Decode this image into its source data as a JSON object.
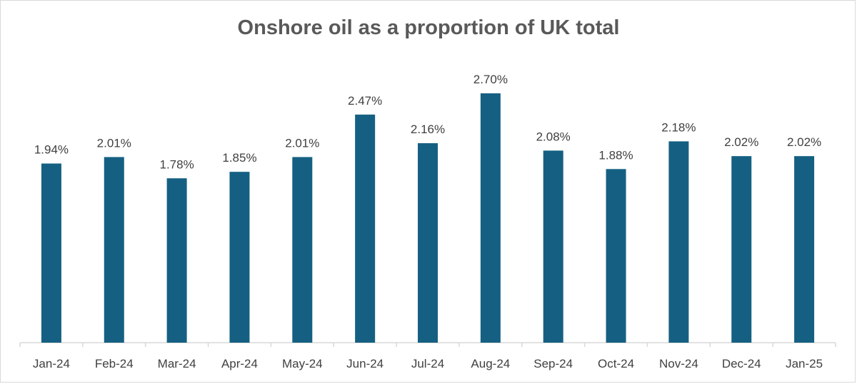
{
  "chart_data": {
    "type": "bar",
    "title": "Onshore oil as a proportion of UK total",
    "xlabel": "",
    "ylabel": "",
    "categories": [
      "Jan-24",
      "Feb-24",
      "Mar-24",
      "Apr-24",
      "May-24",
      "Jun-24",
      "Jul-24",
      "Aug-24",
      "Sep-24",
      "Oct-24",
      "Nov-24",
      "Dec-24",
      "Jan-25"
    ],
    "values": [
      1.94,
      2.01,
      1.78,
      1.85,
      2.01,
      2.47,
      2.16,
      2.7,
      2.08,
      1.88,
      2.18,
      2.02,
      2.02
    ],
    "data_labels": [
      "1.94%",
      "2.01%",
      "1.78%",
      "1.85%",
      "2.01%",
      "2.47%",
      "2.16%",
      "2.70%",
      "2.08%",
      "1.88%",
      "2.18%",
      "2.02%",
      "2.02%"
    ],
    "ylim": [
      0,
      2.7
    ],
    "grid": false,
    "legend": "none",
    "bar_color": "#156082",
    "axis_color": "#d9d9d9"
  }
}
